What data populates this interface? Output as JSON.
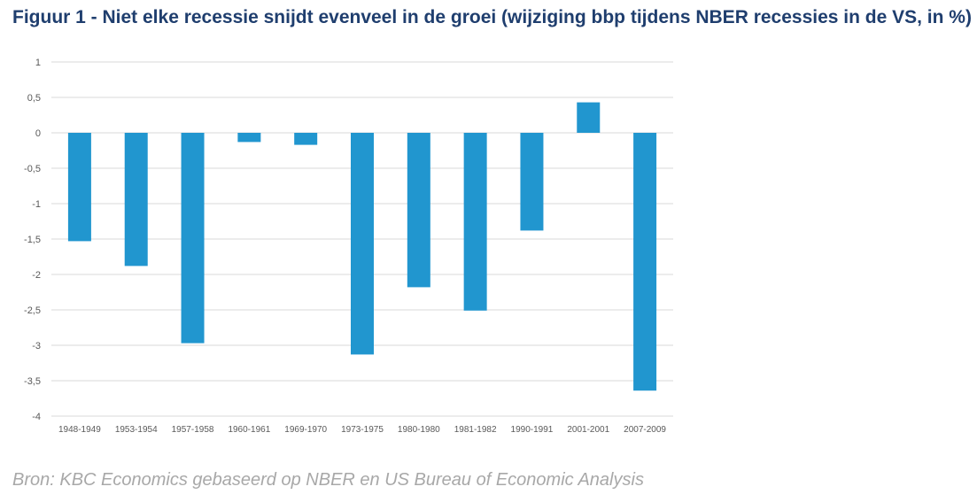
{
  "title": "Figuur 1 - Niet elke recessie snijdt evenveel in de groei (wijziging bbp tijdens NBER recessies in de VS, in %)",
  "source": "Bron: KBC Economics gebaseerd op NBER en US Bureau of Economic Analysis",
  "colors": {
    "bar": "#2196cf",
    "title": "#1f3e6e",
    "grid": "#d9d9d9",
    "source": "#a8a8a8"
  },
  "chart_data": {
    "type": "bar",
    "title": "Figuur 1 - Niet elke recessie snijdt evenveel in de groei (wijziging bbp tijdens NBER recessies in de VS, in %)",
    "xlabel": "",
    "ylabel": "",
    "categories": [
      "1948-1949",
      "1953-1954",
      "1957-1958",
      "1960-1961",
      "1969-1970",
      "1973-1975",
      "1980-1980",
      "1981-1982",
      "1990-1991",
      "2001-2001",
      "2007-2009"
    ],
    "values": [
      -1.53,
      -1.88,
      -2.97,
      -0.13,
      -0.17,
      -3.13,
      -2.18,
      -2.51,
      -1.38,
      0.43,
      -3.64
    ],
    "ylim": [
      -4,
      1
    ],
    "yticks": [
      1,
      0.5,
      0,
      -0.5,
      -1,
      -1.5,
      -2,
      -2.5,
      -3,
      -3.5,
      -4
    ],
    "ytick_labels": [
      "1",
      "0,5",
      "0",
      "-0,5",
      "-1",
      "-1,5",
      "-2",
      "-2,5",
      "-3",
      "-3,5",
      "-4"
    ],
    "grid": true,
    "legend": "none"
  }
}
